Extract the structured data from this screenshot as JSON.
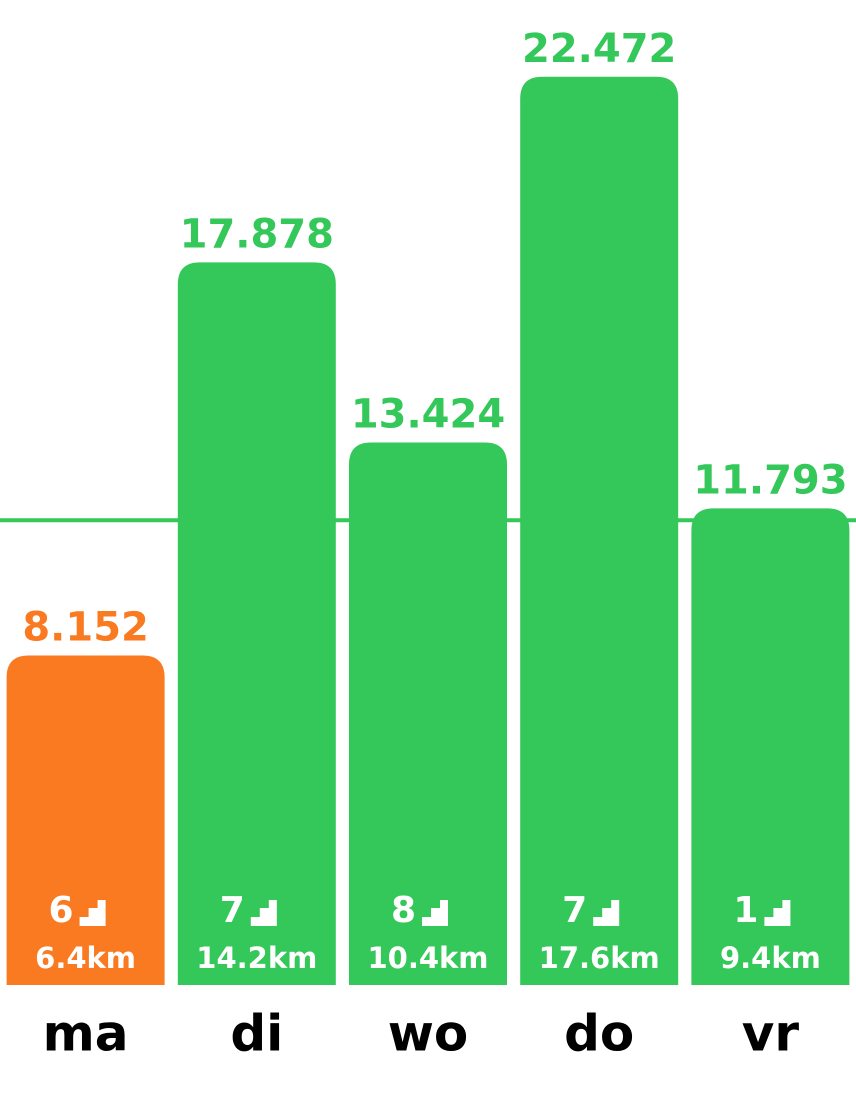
{
  "chart_data": {
    "type": "bar",
    "categories": [
      "ma",
      "di",
      "wo",
      "do",
      "vr"
    ],
    "values": [
      8152,
      17878,
      13424,
      22472,
      11793
    ],
    "value_labels": [
      "8.152",
      "17.878",
      "13.424",
      "22.472",
      "11.793"
    ],
    "colors": [
      "#f97a21",
      "#34c759",
      "#34c759",
      "#34c759",
      "#34c759"
    ],
    "floors": [
      6,
      7,
      8,
      7,
      1
    ],
    "distances": [
      "6.4km",
      "14.2km",
      "10.4km",
      "17.6km",
      "9.4km"
    ],
    "goal": 11500,
    "goal_color": "#34c759",
    "ylim": [
      0,
      24000
    ]
  }
}
